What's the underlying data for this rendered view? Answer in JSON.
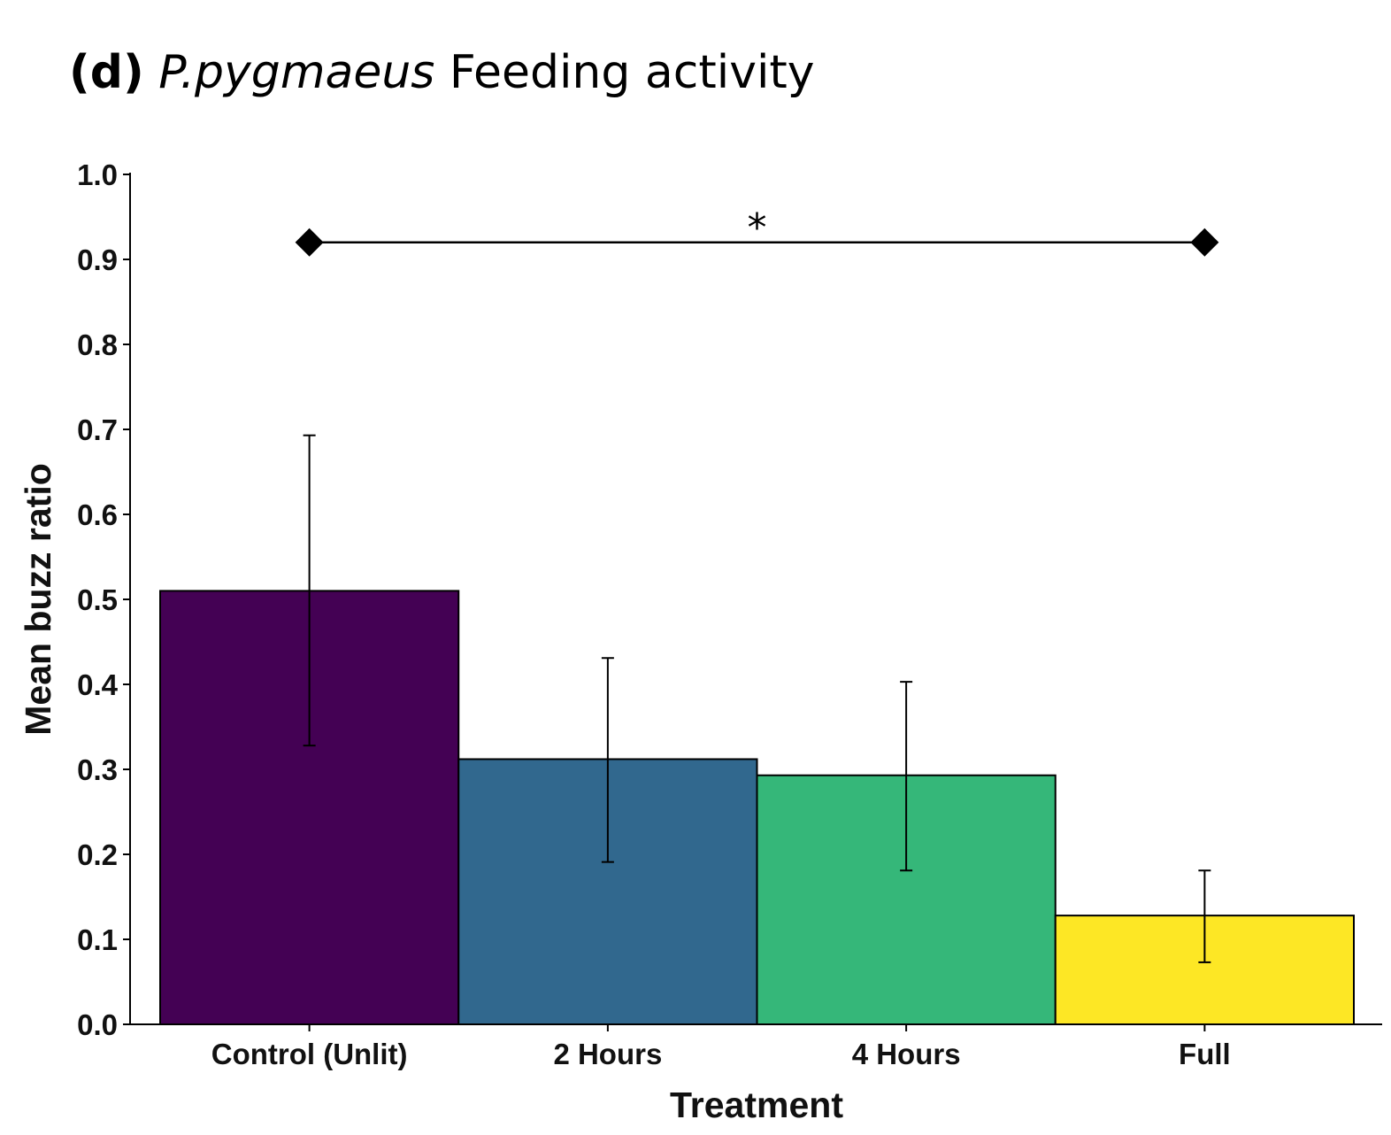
{
  "chart_data": {
    "type": "bar",
    "title": {
      "panel": "(d)",
      "species": "P.pygmaeus",
      "rest": "Feeding activity"
    },
    "xlabel": "Treatment",
    "ylabel": "Mean buzz ratio",
    "ylim": [
      0,
      1.0
    ],
    "yticks": [
      "0.0",
      "0.1",
      "0.2",
      "0.3",
      "0.4",
      "0.5",
      "0.6",
      "0.7",
      "0.8",
      "0.9",
      "1.0"
    ],
    "categories": [
      "Control (Unlit)",
      "2 Hours",
      "4 Hours",
      "Full"
    ],
    "values": [
      0.51,
      0.312,
      0.293,
      0.128
    ],
    "error_low": [
      0.328,
      0.191,
      0.181,
      0.073
    ],
    "error_high": [
      0.693,
      0.431,
      0.403,
      0.181
    ],
    "colors": [
      "#440154",
      "#31688E",
      "#35B779",
      "#FDE725"
    ],
    "grid": false,
    "significance": {
      "from_category": 0,
      "to_category": 3,
      "y": 0.92,
      "label": "*"
    }
  }
}
